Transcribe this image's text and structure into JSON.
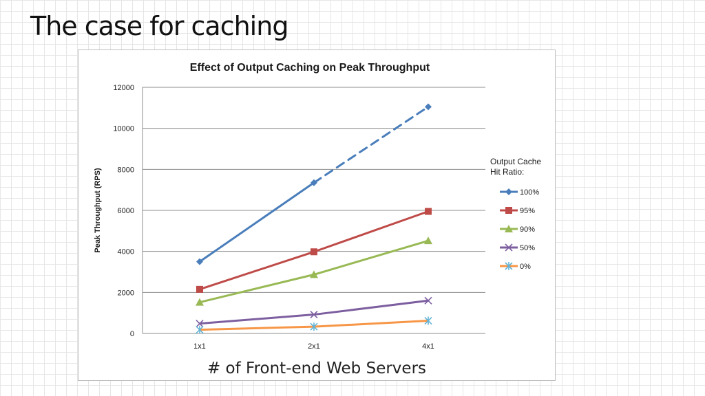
{
  "slide": {
    "title": "The case for caching"
  },
  "chart_data": {
    "type": "line",
    "title": "Effect of Output Caching on Peak Throughput",
    "xlabel": "# of Front-end Web Servers",
    "ylabel": "Peak Throughput (RPS)",
    "categories": [
      "1x1",
      "2x1",
      "4x1"
    ],
    "ylim": [
      0,
      12000
    ],
    "yticks": [
      0,
      2000,
      4000,
      6000,
      8000,
      10000,
      12000
    ],
    "grid": true,
    "legend": {
      "title_line1": "Output Cache",
      "title_line2": "Hit Ratio:",
      "placement": "right"
    },
    "series": [
      {
        "name": "100%",
        "values": [
          3500,
          7350,
          11050
        ],
        "color": "#4a7ebb",
        "marker": "diamond",
        "dashed_last_segment": true
      },
      {
        "name": "95%",
        "values": [
          2150,
          3980,
          5950
        ],
        "color": "#be4b48",
        "marker": "square"
      },
      {
        "name": "90%",
        "values": [
          1520,
          2870,
          4520
        ],
        "color": "#98b954",
        "marker": "triangle"
      },
      {
        "name": "50%",
        "values": [
          480,
          920,
          1600
        ],
        "color": "#7d5fa0",
        "marker": "x"
      },
      {
        "name": "0%",
        "values": [
          180,
          330,
          620
        ],
        "color": "#f79646",
        "marker": "star"
      }
    ]
  }
}
